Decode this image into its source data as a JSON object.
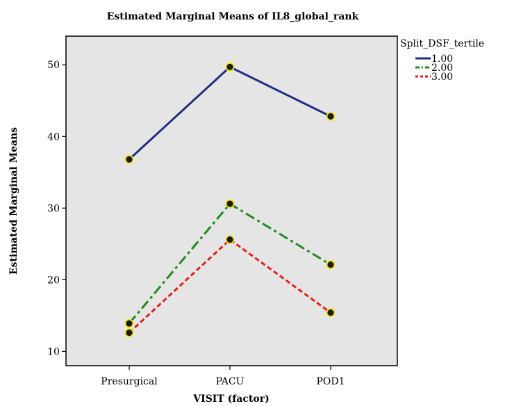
{
  "chart_data": {
    "type": "line",
    "title": "Estimated Marginal Means of IL8_global_rank",
    "xlabel": "VISIT (factor)",
    "ylabel": "Estimated Marginal Means",
    "categories": [
      "Presurgical",
      "PACU",
      "POD1"
    ],
    "ylim": [
      8,
      54
    ],
    "yticks": [
      10,
      20,
      30,
      40,
      50
    ],
    "grid": false,
    "legend": {
      "title": "Split_DSF_tertile",
      "placement": "top-right-outside"
    },
    "series": [
      {
        "name": "1.00",
        "values": [
          36.8,
          49.7,
          42.8
        ],
        "color": "#1f2f80",
        "dash": "solid"
      },
      {
        "name": "2.00",
        "values": [
          13.9,
          30.6,
          22.1
        ],
        "color": "#1f8a1f",
        "dash": "dash-dot"
      },
      {
        "name": "3.00",
        "values": [
          12.6,
          25.6,
          15.4
        ],
        "color": "#e0201f",
        "dash": "dash"
      }
    ],
    "marker": {
      "fill": "#1a1a1a",
      "stroke": "#f2e600"
    },
    "plot_background": "#e5e5e5"
  }
}
